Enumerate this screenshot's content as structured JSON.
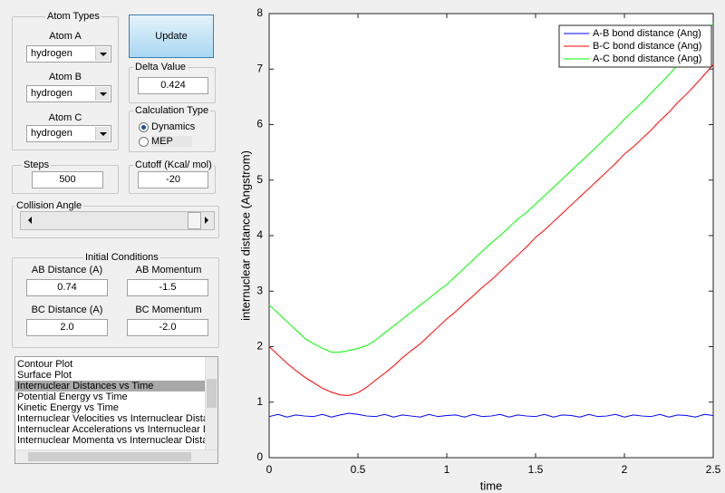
{
  "atom_types": {
    "title": "Atom Types",
    "atoms": [
      {
        "label": "Atom A",
        "value": "hydrogen"
      },
      {
        "label": "Atom B",
        "value": "hydrogen"
      },
      {
        "label": "Atom C",
        "value": "hydrogen"
      }
    ]
  },
  "update_button": "Update",
  "delta_value": {
    "title": "Delta Value",
    "value": "0.424"
  },
  "calculation_type": {
    "title": "Calculation Type",
    "options": [
      "Dynamics",
      "MEP"
    ],
    "selected": 0
  },
  "steps": {
    "title": "Steps",
    "value": "500"
  },
  "cutoff": {
    "title": "Cutoff (Kcal/ mol)",
    "value": "-20"
  },
  "collision_angle": {
    "title": "Collision Angle"
  },
  "initial_conditions": {
    "title": "Initial Conditions",
    "fields": [
      {
        "label": "AB Distance (A)",
        "value": "0.74"
      },
      {
        "label": "AB Momentum",
        "value": "-1.5"
      },
      {
        "label": "BC Distance (A)",
        "value": "2.0"
      },
      {
        "label": "BC Momentum",
        "value": "-2.0"
      }
    ]
  },
  "plot_list": {
    "items": [
      "Contour Plot",
      "Surface Plot",
      "Internuclear Distances vs Time",
      "Potential Energy vs Time",
      "Kinetic Energy vs Time",
      "Internuclear Velocities vs Internuclear Distance",
      "Internuclear Accelerations vs Internuclear Distance",
      "Internuclear Momenta vs Internuclear Distance"
    ],
    "selected": 2
  },
  "chart_data": {
    "type": "line",
    "x_label": "time",
    "y_label": "internuclear distance (Angstrom)",
    "xlim": [
      0,
      2.5
    ],
    "ylim": [
      0,
      8
    ],
    "xticks": [
      0,
      0.5,
      1,
      1.5,
      2,
      2.5
    ],
    "yticks": [
      0,
      1,
      2,
      3,
      4,
      5,
      6,
      7,
      8
    ],
    "legend": "upper right",
    "x": [
      0,
      0.05,
      0.1,
      0.15,
      0.2,
      0.25,
      0.3,
      0.35,
      0.4,
      0.45,
      0.5,
      0.55,
      0.6,
      0.65,
      0.7,
      0.75,
      0.8,
      0.85,
      0.9,
      0.95,
      1,
      1.05,
      1.1,
      1.15,
      1.2,
      1.25,
      1.3,
      1.35,
      1.4,
      1.45,
      1.5,
      1.55,
      1.6,
      1.65,
      1.7,
      1.75,
      1.8,
      1.85,
      1.9,
      1.95,
      2,
      2.05,
      2.1,
      2.15,
      2.2,
      2.25,
      2.3,
      2.35,
      2.4,
      2.45,
      2.5
    ],
    "series": [
      {
        "name": "A-B bond distance (Ang)",
        "color": "#0000ff",
        "values": [
          0.74,
          0.78,
          0.73,
          0.77,
          0.75,
          0.74,
          0.78,
          0.73,
          0.77,
          0.8,
          0.78,
          0.75,
          0.74,
          0.78,
          0.73,
          0.77,
          0.75,
          0.73,
          0.78,
          0.74,
          0.76,
          0.77,
          0.73,
          0.78,
          0.74,
          0.75,
          0.78,
          0.73,
          0.77,
          0.75,
          0.74,
          0.78,
          0.73,
          0.77,
          0.76,
          0.73,
          0.78,
          0.74,
          0.75,
          0.78,
          0.73,
          0.77,
          0.75,
          0.74,
          0.78,
          0.73,
          0.77,
          0.76,
          0.73,
          0.78,
          0.76
        ]
      },
      {
        "name": "B-C bond distance (Ang)",
        "color": "#ff0000",
        "values": [
          2.0,
          1.85,
          1.7,
          1.57,
          1.45,
          1.35,
          1.25,
          1.18,
          1.13,
          1.12,
          1.17,
          1.27,
          1.4,
          1.52,
          1.65,
          1.8,
          1.93,
          2.05,
          2.2,
          2.35,
          2.5,
          2.63,
          2.78,
          2.92,
          3.07,
          3.2,
          3.35,
          3.5,
          3.65,
          3.8,
          3.97,
          4.1,
          4.25,
          4.4,
          4.55,
          4.7,
          4.85,
          5.0,
          5.15,
          5.3,
          5.47,
          5.6,
          5.75,
          5.9,
          6.07,
          6.22,
          6.4,
          6.55,
          6.72,
          6.9,
          7.08
        ]
      },
      {
        "name": "A-C bond distance (Ang)",
        "color": "#00ff00",
        "values": [
          2.75,
          2.6,
          2.45,
          2.3,
          2.15,
          2.05,
          1.97,
          1.9,
          1.9,
          1.93,
          1.97,
          2.02,
          2.12,
          2.25,
          2.37,
          2.5,
          2.62,
          2.75,
          2.87,
          3.0,
          3.12,
          3.27,
          3.42,
          3.57,
          3.72,
          3.87,
          4.0,
          4.15,
          4.3,
          4.42,
          4.57,
          4.72,
          4.87,
          5.02,
          5.17,
          5.32,
          5.47,
          5.62,
          5.78,
          5.93,
          6.1,
          6.25,
          6.4,
          6.57,
          6.73,
          6.9,
          7.07,
          7.25,
          7.42,
          7.62,
          7.82
        ]
      }
    ]
  }
}
